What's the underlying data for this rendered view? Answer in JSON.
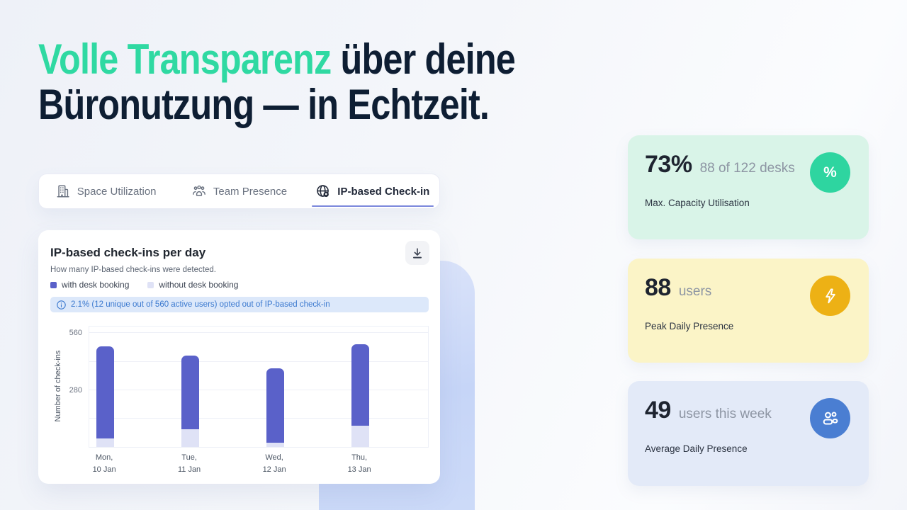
{
  "headline": {
    "highlight": "Volle Transparenz",
    "rest": " über deine",
    "line2": "Büronutzung — in Echtzeit.",
    "highlight_color": "#2fd9a2",
    "text_color": "#0e1e33"
  },
  "tabs": [
    {
      "label": "Space Utilization",
      "icon": "building-icon",
      "active": false
    },
    {
      "label": "Team Presence",
      "icon": "team-icon",
      "active": false
    },
    {
      "label": "IP-based Check-in",
      "icon": "globe-pin-icon",
      "active": true
    }
  ],
  "chart_card": {
    "title": "IP-based check-ins per day",
    "subtitle": "How many IP-based check-ins were detected.",
    "info_banner": "2.1% (12 unique out of 560 active users) opted out of IP-based check-in",
    "download_button": "download-icon",
    "accent_underline_color": "#7b87dc"
  },
  "chart_data": {
    "type": "bar",
    "stacked": true,
    "title": "IP-based check-ins per day",
    "xlabel": "",
    "ylabel": "Number of check-ins",
    "categories": [
      {
        "line1": "Mon,",
        "line2": "10 Jan"
      },
      {
        "line1": "Tue,",
        "line2": "11 Jan"
      },
      {
        "line1": "Wed,",
        "line2": "12 Jan"
      },
      {
        "line1": "Thu,",
        "line2": "13 Jan"
      }
    ],
    "series": [
      {
        "name": "without desk booking",
        "color": "#dfe2f6",
        "values": [
          42,
          86,
          22,
          106
        ]
      },
      {
        "name": "with desk booking",
        "color": "#5a61c9",
        "values": [
          453,
          364,
          365,
          400
        ]
      }
    ],
    "legend": [
      {
        "label": "with desk booking",
        "color": "#5a61c9"
      },
      {
        "label": "without desk booking",
        "color": "#dfe2f6"
      }
    ],
    "ylim": [
      0,
      600
    ],
    "yticks": [
      280,
      560
    ],
    "gridlines": [
      140,
      280,
      420,
      560
    ],
    "grid": true,
    "legend_position": "top-left"
  },
  "stat_cards": [
    {
      "value": "73%",
      "suffix": "88 of 122 desks",
      "label": "Max. Capacity Utilisation",
      "bg": "#d9f4e8",
      "icon": "percent-icon",
      "icon_bg": "#2ed5a0"
    },
    {
      "value": "88",
      "suffix": "users",
      "label": "Peak Daily Presence",
      "bg": "#fbf4c7",
      "icon": "lightning-icon",
      "icon_bg": "#edb115"
    },
    {
      "value": "49",
      "suffix": "users this week",
      "label": "Average Daily Presence",
      "bg": "#e3eaf8",
      "icon": "users-icon",
      "icon_bg": "#4a7ed2"
    }
  ]
}
